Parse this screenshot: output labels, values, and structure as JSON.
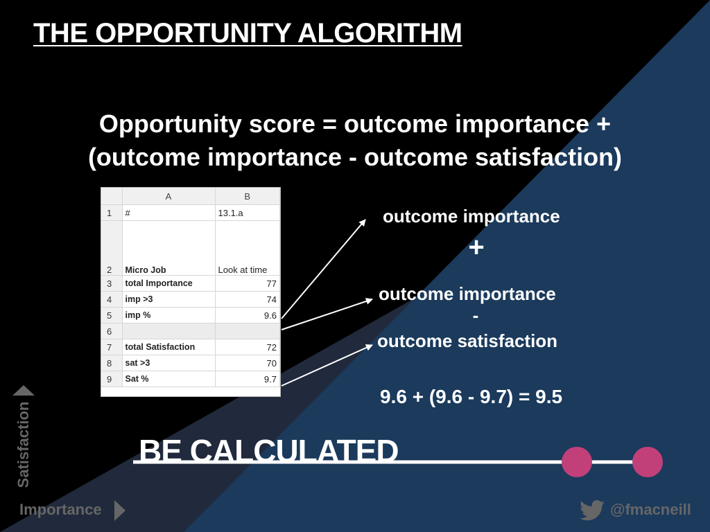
{
  "slide": {
    "title": "THE OPPORTUNITY ALGORITHM",
    "formula_line1": "Opportunity score = outcome importance +",
    "formula_line2": "(outcome importance - outcome satisfaction)",
    "labels": {
      "importance_top": "outcome importance",
      "plus": "+",
      "importance_mid": "outcome importance",
      "minus": "-",
      "satisfaction": "outcome satisfaction"
    },
    "result": "9.6 + (9.6 - 9.7) = 9.5",
    "banner": "BE CALCULATED",
    "axis_y": "Satisfaction",
    "axis_x": "Importance",
    "handle": "@fmacneill",
    "colors": {
      "background": "#000000",
      "navy": "#1b3a5c",
      "slate": "#212a3c",
      "accent_dot": "#c2407a",
      "axis_gray": "#666666"
    },
    "icons": [
      "triangle-up-icon",
      "triangle-right-icon",
      "twitter-bird-icon"
    ]
  },
  "sheet": {
    "col_headers": [
      "A",
      "B"
    ],
    "rows": [
      {
        "n": "1",
        "a": "#",
        "b": "13.1.a"
      },
      {
        "n": "2",
        "a": "Micro Job",
        "b": "Look at time"
      },
      {
        "n": "3",
        "a": "total Importance",
        "b": "77"
      },
      {
        "n": "4",
        "a": "imp >3",
        "b": "74"
      },
      {
        "n": "5",
        "a": "imp %",
        "b": "9.6"
      },
      {
        "n": "6",
        "a": "",
        "b": ""
      },
      {
        "n": "7",
        "a": "total Satisfaction",
        "b": "72"
      },
      {
        "n": "8",
        "a": "sat >3",
        "b": "70"
      },
      {
        "n": "9",
        "a": "Sat %",
        "b": "9.7"
      }
    ]
  }
}
